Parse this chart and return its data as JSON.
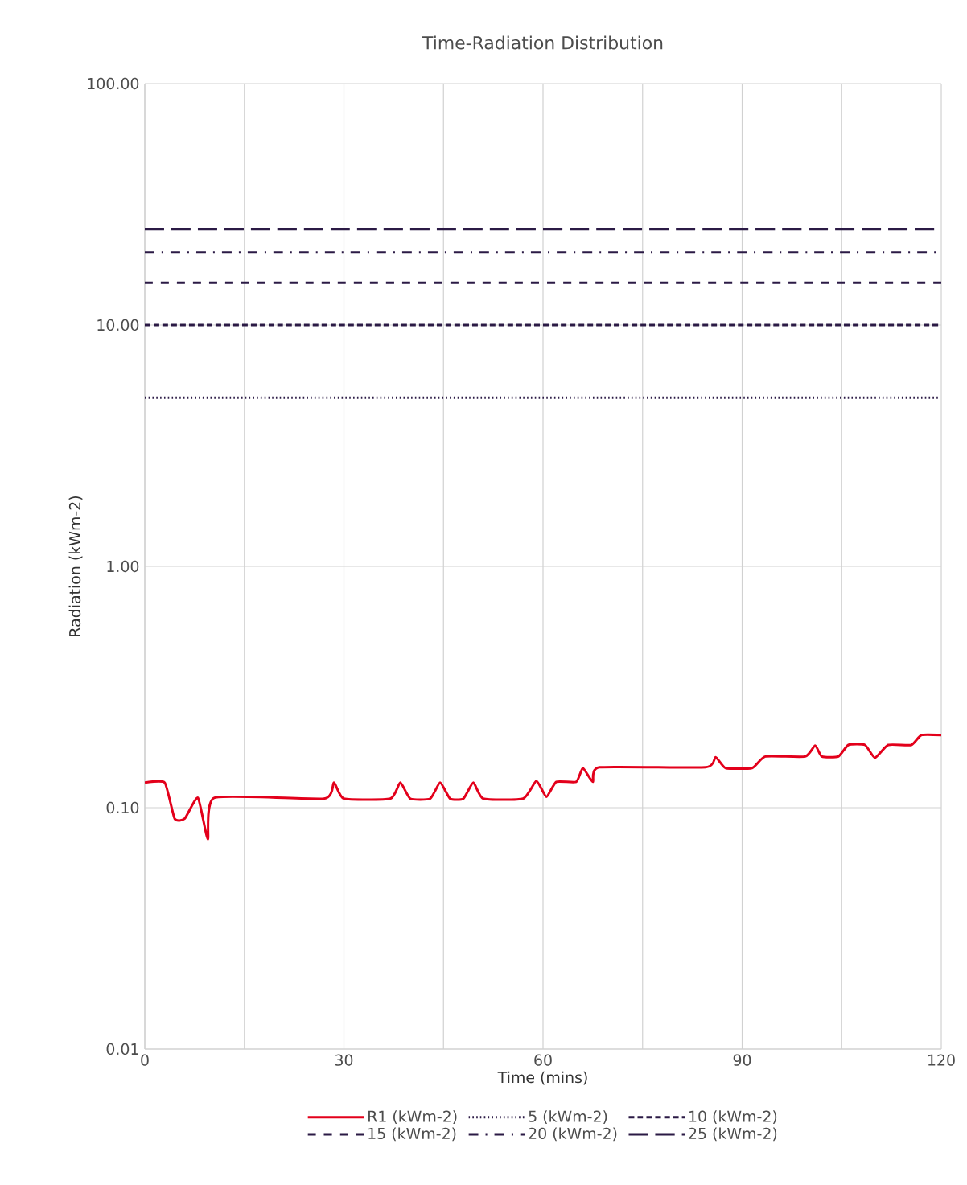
{
  "chart_data": {
    "type": "line",
    "title": "Time-Radiation Distribution",
    "xlabel": "Time (mins)",
    "ylabel": "Radiation (kWm-2)",
    "log": "y",
    "grid": true,
    "legend": "bottom",
    "marker": "none",
    "xlim": [
      0,
      120
    ],
    "xticks": [
      0,
      {
        "value": 15,
        "label": null
      },
      30,
      {
        "value": 45,
        "label": null
      },
      60,
      {
        "value": 75,
        "label": null
      },
      90,
      {
        "value": 105,
        "label": null
      },
      120
    ],
    "ylim": [
      0.01,
      100
    ],
    "yticks": [
      {
        "value": 0.01,
        "label": "0.01"
      },
      {
        "value": 0.1,
        "label": "0.10"
      },
      {
        "value": 1,
        "label": "1.00"
      },
      {
        "value": 10,
        "label": "10.00"
      },
      {
        "value": 100,
        "label": "100.00"
      }
    ],
    "series": [
      {
        "name": "R1 (kWm-2)",
        "color": "#e3001b",
        "line_style": "solid",
        "x": [
          0,
          3,
          4.5,
          6,
          8,
          9.5,
          10.5,
          27,
          28.5,
          30,
          37,
          38.5,
          40,
          43,
          44.5,
          46,
          48,
          49.5,
          51,
          57,
          59,
          60.5,
          62,
          65,
          66,
          67.5,
          68.5,
          84.5,
          86,
          87.5,
          91.5,
          93.5,
          99.5,
          101,
          102,
          104.5,
          106,
          108.5,
          110,
          112,
          115.5,
          117,
          120
        ],
        "values": [
          0.127,
          0.127,
          0.09,
          0.09,
          0.11,
          0.074,
          0.11,
          0.109,
          0.127,
          0.109,
          0.109,
          0.127,
          0.109,
          0.109,
          0.127,
          0.109,
          0.109,
          0.127,
          0.109,
          0.109,
          0.129,
          0.111,
          0.128,
          0.128,
          0.146,
          0.128,
          0.147,
          0.147,
          0.162,
          0.146,
          0.146,
          0.163,
          0.163,
          0.181,
          0.163,
          0.163,
          0.182,
          0.182,
          0.161,
          0.182,
          0.182,
          0.2,
          0.2
        ]
      },
      {
        "name": "5 (kWm-2)",
        "color": "#2b1a45",
        "line_style": "dotted",
        "x": [
          0,
          119.5
        ],
        "values": [
          5,
          5
        ]
      },
      {
        "name": "10 (kWm-2)",
        "color": "#2b1a45",
        "line_style": "short dashed",
        "x": [
          0,
          120
        ],
        "values": [
          10,
          10
        ]
      },
      {
        "name": "15 (kWm-2)",
        "color": "#2b1a45",
        "line_style": "dashed",
        "x": [
          0,
          120
        ],
        "values": [
          15,
          15
        ]
      },
      {
        "name": "20 (kWm-2)",
        "color": "#2b1a45",
        "line_style": "dashdot",
        "x": [
          0,
          120
        ],
        "values": [
          20,
          20
        ]
      },
      {
        "name": "25 (kWm-2)",
        "color": "#2b1a45",
        "line_style": "long dashed",
        "x": [
          0,
          120
        ],
        "values": [
          25,
          25
        ]
      }
    ]
  }
}
